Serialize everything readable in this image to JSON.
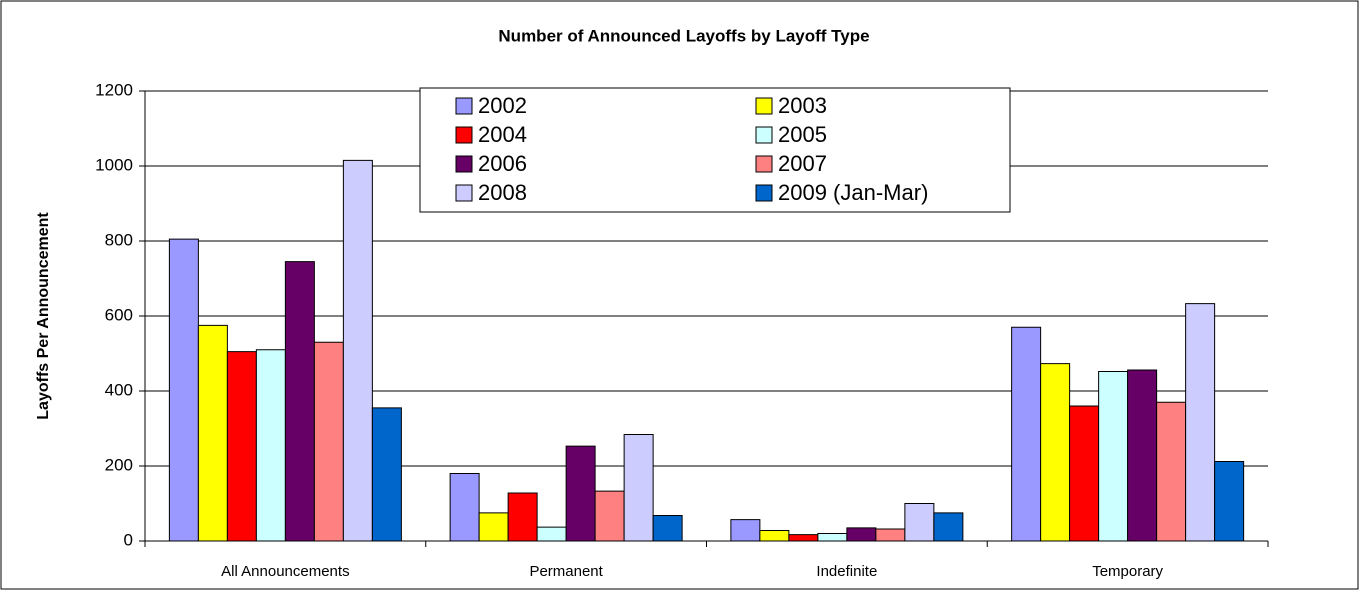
{
  "chart_data": {
    "type": "bar",
    "title": "Number of Announced Layoffs by Layoff Type",
    "y_label": "Layoffs Per Announcement",
    "categories": [
      "All Announcements",
      "Permanent",
      "Indefinite",
      "Temporary"
    ],
    "series": [
      {
        "name": "2002",
        "color": "#9999ff",
        "values": [
          805,
          180,
          57,
          570
        ]
      },
      {
        "name": "2003",
        "color": "#ffff00",
        "values": [
          575,
          75,
          28,
          473
        ]
      },
      {
        "name": "2004",
        "color": "#ff0000",
        "values": [
          505,
          128,
          17,
          360
        ]
      },
      {
        "name": "2005",
        "color": "#ccffff",
        "values": [
          510,
          37,
          20,
          452
        ]
      },
      {
        "name": "2006",
        "color": "#660066",
        "values": [
          745,
          253,
          35,
          456
        ]
      },
      {
        "name": "2007",
        "color": "#ff8080",
        "values": [
          530,
          133,
          32,
          370
        ]
      },
      {
        "name": "2008",
        "color": "#ccccff",
        "values": [
          1015,
          284,
          100,
          633
        ]
      },
      {
        "name": "2009 (Jan-Mar)",
        "color": "#0066cc",
        "values": [
          355,
          68,
          75,
          212
        ]
      }
    ],
    "ylim": [
      0,
      1200
    ],
    "yticks": [
      0,
      200,
      400,
      600,
      800,
      1000,
      1200
    ],
    "grid": true
  }
}
